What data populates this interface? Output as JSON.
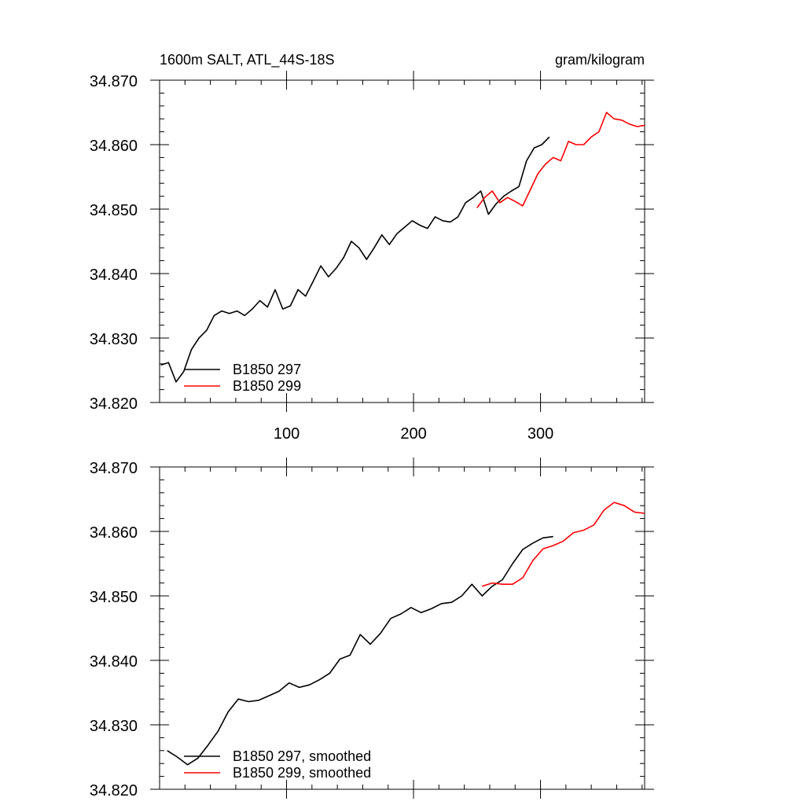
{
  "figure": {
    "title_left": "1600m SALT, ATL_44S-18S",
    "title_right": "gram/kilogram"
  },
  "chart_data": [
    {
      "type": "line",
      "name": "raw",
      "xlim": [
        0,
        382
      ],
      "ylim": [
        34.82,
        34.87
      ],
      "yticks": [
        34.82,
        34.83,
        34.84,
        34.85,
        34.86,
        34.87
      ],
      "ytick_labels": [
        "34.820",
        "34.830",
        "34.840",
        "34.850",
        "34.860",
        "34.870"
      ],
      "xticks": [
        100,
        200,
        300
      ],
      "xtick_labels": [
        "100",
        "200",
        "300"
      ],
      "legend": [
        "B1850 297",
        "B1850 299"
      ],
      "series": [
        {
          "name": "B1850 297",
          "color": "#000000",
          "x_start": 1,
          "x_step": 6,
          "values": [
            34.8258,
            34.8262,
            34.8232,
            34.8248,
            34.8282,
            34.83,
            34.8312,
            34.8335,
            34.8342,
            34.8338,
            34.8342,
            34.8335,
            34.8345,
            34.8358,
            34.8348,
            34.8375,
            34.8345,
            34.835,
            34.8375,
            34.8365,
            34.8388,
            34.8412,
            34.8395,
            34.8408,
            34.8425,
            34.845,
            34.844,
            34.8422,
            34.844,
            34.846,
            34.8445,
            34.8462,
            34.8472,
            34.8482,
            34.8475,
            34.847,
            34.8488,
            34.8482,
            34.848,
            34.8488,
            34.851,
            34.8518,
            34.8528,
            34.8492,
            34.8508,
            34.852,
            34.8528,
            34.8535,
            34.8575,
            34.8595,
            34.86,
            34.8612
          ]
        },
        {
          "name": "B1850 299",
          "color": "#ff0000",
          "x_start": 250,
          "x_step": 6,
          "values": [
            34.8502,
            34.8518,
            34.8528,
            34.851,
            34.8518,
            34.8512,
            34.8505,
            34.853,
            34.8555,
            34.857,
            34.858,
            34.8575,
            34.8605,
            34.86,
            34.86,
            34.8612,
            34.862,
            34.865,
            34.864,
            34.8638,
            34.8632,
            34.8628,
            34.863
          ]
        }
      ]
    },
    {
      "type": "line",
      "name": "smoothed",
      "xlim": [
        0,
        382
      ],
      "ylim": [
        34.82,
        34.87
      ],
      "yticks": [
        34.82,
        34.83,
        34.84,
        34.85,
        34.86,
        34.87
      ],
      "ytick_labels": [
        "34.820",
        "34.830",
        "34.840",
        "34.850",
        "34.860",
        "34.870"
      ],
      "xticks": [
        100,
        200,
        300
      ],
      "legend": [
        "B1850 297, smoothed",
        "B1850 299, smoothed"
      ],
      "series": [
        {
          "name": "B1850 297, smoothed",
          "color": "#000000",
          "x_start": 6,
          "x_step": 8,
          "values": [
            34.826,
            34.825,
            34.8238,
            34.8248,
            34.8268,
            34.829,
            34.832,
            34.834,
            34.8336,
            34.8338,
            34.8345,
            34.8352,
            34.8365,
            34.8358,
            34.8362,
            34.837,
            34.838,
            34.8402,
            34.8408,
            34.844,
            34.8425,
            34.8442,
            34.8465,
            34.8472,
            34.8482,
            34.8474,
            34.848,
            34.8488,
            34.849,
            34.85,
            34.8518,
            34.85,
            34.8515,
            34.8525,
            34.855,
            34.8572,
            34.8582,
            34.859,
            34.8592
          ]
        },
        {
          "name": "B1850 299, smoothed",
          "color": "#ff0000",
          "x_start": 254,
          "x_step": 8,
          "values": [
            34.8515,
            34.852,
            34.8518,
            34.8518,
            34.8528,
            34.8555,
            34.8573,
            34.8578,
            34.8585,
            34.8598,
            34.8602,
            34.861,
            34.8633,
            34.8645,
            34.864,
            34.863,
            34.8628
          ]
        }
      ]
    }
  ]
}
